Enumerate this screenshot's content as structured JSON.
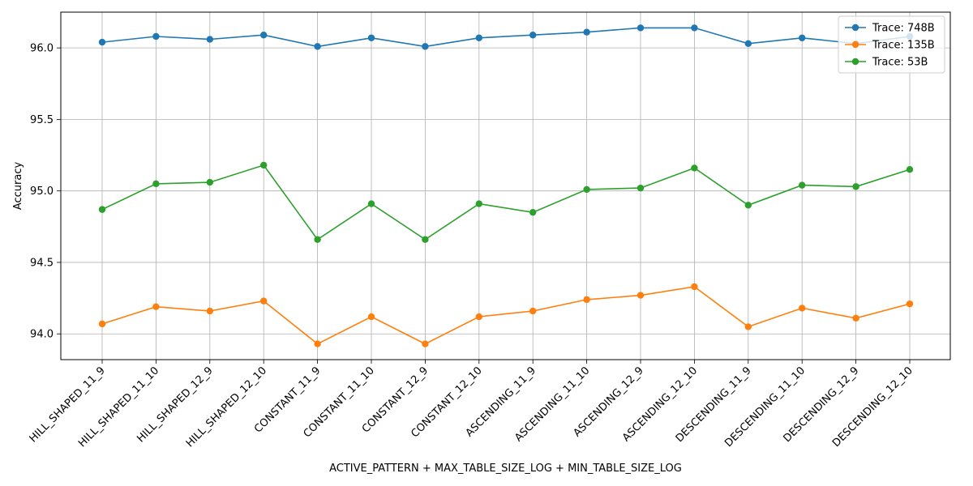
{
  "chart_data": {
    "type": "line",
    "title": "",
    "xlabel": "ACTIVE_PATTERN + MAX_TABLE_SIZE_LOG + MIN_TABLE_SIZE_LOG",
    "ylabel": "Accuracy",
    "ylim": [
      93.82,
      96.25
    ],
    "yticks": [
      94.0,
      94.5,
      95.0,
      95.5,
      96.0
    ],
    "ytick_labels": [
      "94.0",
      "94.5",
      "95.0",
      "95.5",
      "96.0"
    ],
    "grid": true,
    "legend_position": "top-right",
    "categories": [
      "HILL_SHAPED_11_9",
      "HILL_SHAPED_11_10",
      "HILL_SHAPED_12_9",
      "HILL_SHAPED_12_10",
      "CONSTANT_11_9",
      "CONSTANT_11_10",
      "CONSTANT_12_9",
      "CONSTANT_12_10",
      "ASCENDING_11_9",
      "ASCENDING_11_10",
      "ASCENDING_12_9",
      "ASCENDING_12_10",
      "DESCENDING_11_9",
      "DESCENDING_11_10",
      "DESCENDING_12_9",
      "DESCENDING_12_10"
    ],
    "series": [
      {
        "name": "Trace: 748B",
        "color": "#1f77b4",
        "values": [
          96.04,
          96.08,
          96.06,
          96.09,
          96.01,
          96.07,
          96.01,
          96.07,
          96.09,
          96.11,
          96.14,
          96.14,
          96.03,
          96.07,
          96.03,
          96.08
        ]
      },
      {
        "name": "Trace: 135B",
        "color": "#ff7f0e",
        "values": [
          94.07,
          94.19,
          94.16,
          94.23,
          93.93,
          94.12,
          93.93,
          94.12,
          94.16,
          94.24,
          94.27,
          94.33,
          94.05,
          94.18,
          94.11,
          94.21
        ]
      },
      {
        "name": "Trace: 53B",
        "color": "#2ca02c",
        "values": [
          94.87,
          95.05,
          95.06,
          95.18,
          94.66,
          94.91,
          94.66,
          94.91,
          94.85,
          95.01,
          95.02,
          95.16,
          94.9,
          95.04,
          95.03,
          95.15
        ]
      }
    ]
  }
}
